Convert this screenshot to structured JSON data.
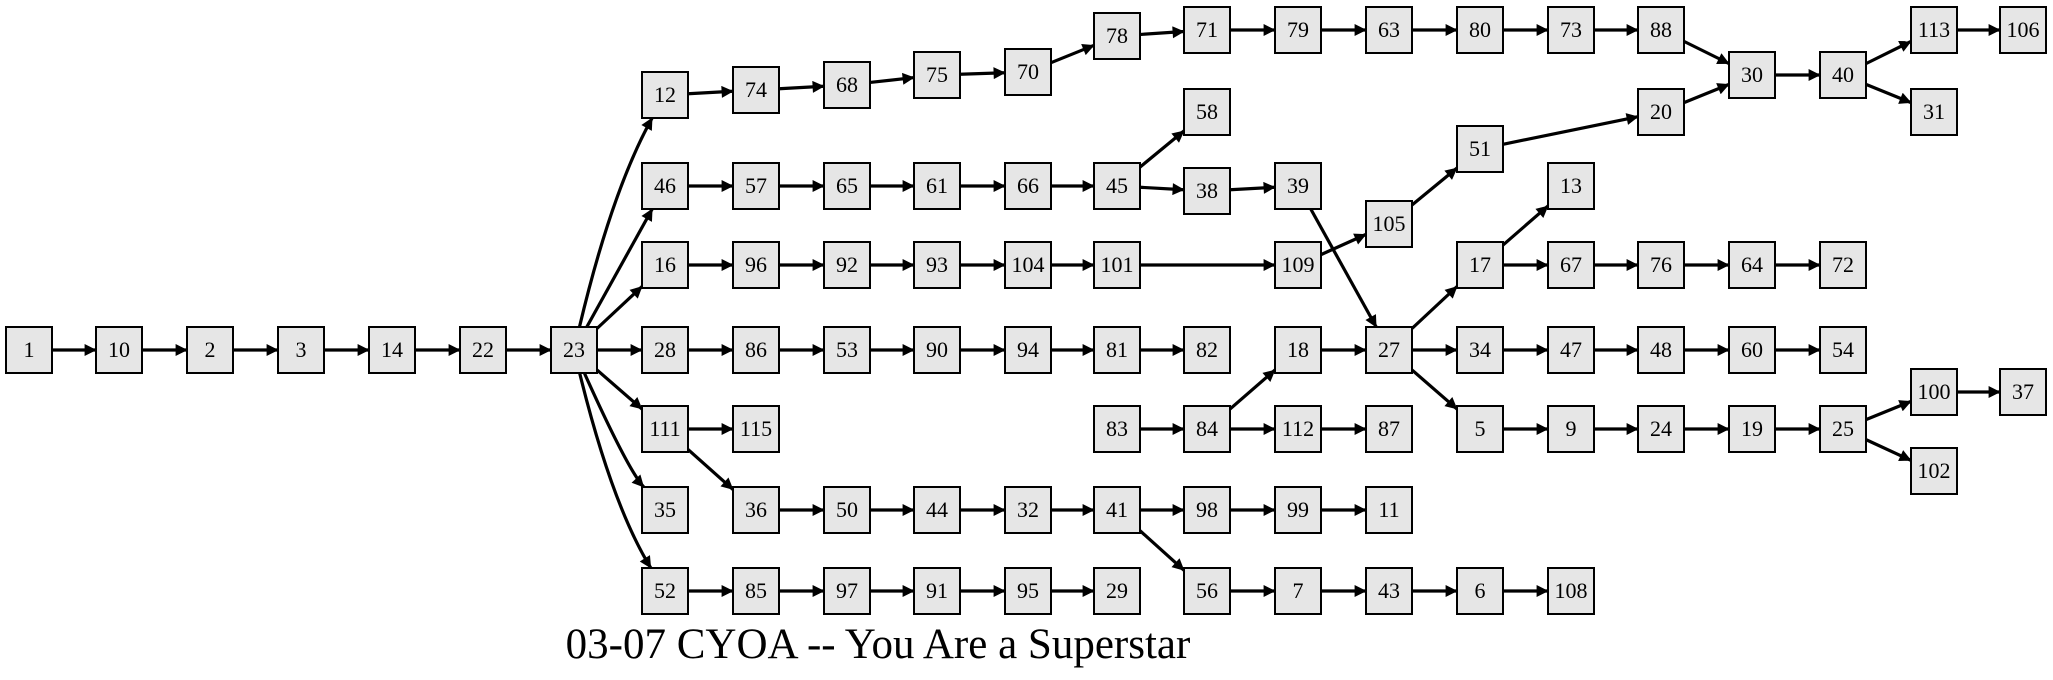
{
  "title": "03-07 CYOA -- You Are a Superstar",
  "colors": {
    "node_fill": "#e6e6e6",
    "stroke": "#000000",
    "background": "#ffffff"
  },
  "nodes": [
    "1",
    "10",
    "2",
    "3",
    "14",
    "22",
    "23",
    "12",
    "74",
    "68",
    "75",
    "70",
    "78",
    "71",
    "79",
    "63",
    "80",
    "73",
    "88",
    "30",
    "40",
    "113",
    "106",
    "31",
    "58",
    "46",
    "57",
    "65",
    "61",
    "66",
    "45",
    "38",
    "39",
    "51",
    "20",
    "105",
    "13",
    "16",
    "96",
    "92",
    "93",
    "104",
    "101",
    "109",
    "17",
    "67",
    "76",
    "64",
    "72",
    "28",
    "86",
    "53",
    "90",
    "94",
    "81",
    "82",
    "18",
    "27",
    "34",
    "47",
    "48",
    "60",
    "54",
    "111",
    "115",
    "83",
    "84",
    "112",
    "87",
    "5",
    "9",
    "24",
    "19",
    "25",
    "100",
    "37",
    "102",
    "35",
    "36",
    "50",
    "44",
    "32",
    "41",
    "98",
    "99",
    "11",
    "52",
    "85",
    "97",
    "91",
    "95",
    "29",
    "56",
    "7",
    "43",
    "6",
    "108"
  ],
  "edges": [
    [
      "1",
      "10"
    ],
    [
      "10",
      "2"
    ],
    [
      "2",
      "3"
    ],
    [
      "3",
      "14"
    ],
    [
      "14",
      "22"
    ],
    [
      "22",
      "23"
    ],
    [
      "23",
      "12"
    ],
    [
      "23",
      "46"
    ],
    [
      "23",
      "16"
    ],
    [
      "23",
      "28"
    ],
    [
      "23",
      "111"
    ],
    [
      "23",
      "35"
    ],
    [
      "23",
      "52"
    ],
    [
      "12",
      "74"
    ],
    [
      "74",
      "68"
    ],
    [
      "68",
      "75"
    ],
    [
      "75",
      "70"
    ],
    [
      "70",
      "78"
    ],
    [
      "78",
      "71"
    ],
    [
      "71",
      "79"
    ],
    [
      "79",
      "63"
    ],
    [
      "63",
      "80"
    ],
    [
      "80",
      "73"
    ],
    [
      "73",
      "88"
    ],
    [
      "88",
      "30"
    ],
    [
      "30",
      "40"
    ],
    [
      "40",
      "113"
    ],
    [
      "113",
      "106"
    ],
    [
      "40",
      "31"
    ],
    [
      "46",
      "57"
    ],
    [
      "57",
      "65"
    ],
    [
      "65",
      "61"
    ],
    [
      "61",
      "66"
    ],
    [
      "66",
      "45"
    ],
    [
      "45",
      "58"
    ],
    [
      "45",
      "38"
    ],
    [
      "38",
      "39"
    ],
    [
      "39",
      "27"
    ],
    [
      "16",
      "96"
    ],
    [
      "96",
      "92"
    ],
    [
      "92",
      "93"
    ],
    [
      "93",
      "104"
    ],
    [
      "104",
      "101"
    ],
    [
      "101",
      "109"
    ],
    [
      "109",
      "105"
    ],
    [
      "105",
      "51"
    ],
    [
      "51",
      "20"
    ],
    [
      "20",
      "30"
    ],
    [
      "28",
      "86"
    ],
    [
      "86",
      "53"
    ],
    [
      "53",
      "90"
    ],
    [
      "90",
      "94"
    ],
    [
      "94",
      "81"
    ],
    [
      "81",
      "82"
    ],
    [
      "111",
      "115"
    ],
    [
      "111",
      "36"
    ],
    [
      "36",
      "50"
    ],
    [
      "50",
      "44"
    ],
    [
      "44",
      "32"
    ],
    [
      "32",
      "41"
    ],
    [
      "41",
      "98"
    ],
    [
      "98",
      "99"
    ],
    [
      "99",
      "11"
    ],
    [
      "41",
      "56"
    ],
    [
      "56",
      "7"
    ],
    [
      "7",
      "43"
    ],
    [
      "43",
      "6"
    ],
    [
      "6",
      "108"
    ],
    [
      "52",
      "85"
    ],
    [
      "85",
      "97"
    ],
    [
      "97",
      "91"
    ],
    [
      "91",
      "95"
    ],
    [
      "95",
      "29"
    ],
    [
      "83",
      "84"
    ],
    [
      "84",
      "18"
    ],
    [
      "84",
      "112"
    ],
    [
      "112",
      "87"
    ],
    [
      "18",
      "27"
    ],
    [
      "27",
      "17"
    ],
    [
      "27",
      "34"
    ],
    [
      "27",
      "5"
    ],
    [
      "17",
      "13"
    ],
    [
      "17",
      "67"
    ],
    [
      "67",
      "76"
    ],
    [
      "76",
      "64"
    ],
    [
      "64",
      "72"
    ],
    [
      "34",
      "47"
    ],
    [
      "47",
      "48"
    ],
    [
      "48",
      "60"
    ],
    [
      "60",
      "54"
    ],
    [
      "5",
      "9"
    ],
    [
      "9",
      "24"
    ],
    [
      "24",
      "19"
    ],
    [
      "19",
      "25"
    ],
    [
      "25",
      "100"
    ],
    [
      "100",
      "37"
    ],
    [
      "25",
      "102"
    ]
  ]
}
